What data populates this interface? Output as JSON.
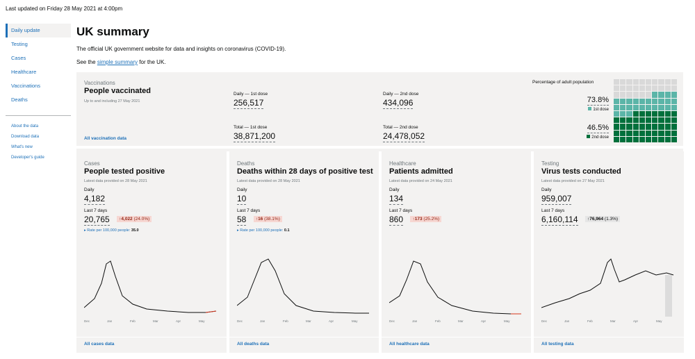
{
  "header": {
    "last_updated": "Last updated on Friday 28 May 2021 at 4:00pm"
  },
  "sidebar": {
    "items": [
      {
        "label": "Daily update",
        "active": true
      },
      {
        "label": "Testing"
      },
      {
        "label": "Cases"
      },
      {
        "label": "Healthcare"
      },
      {
        "label": "Vaccinations"
      },
      {
        "label": "Deaths"
      }
    ],
    "secondary": [
      {
        "label": "About the data"
      },
      {
        "label": "Download data"
      },
      {
        "label": "What's new"
      },
      {
        "label": "Developer's guide"
      }
    ]
  },
  "main": {
    "title": "UK summary",
    "lead": "The official UK government website for data and insights on coronavirus (COVID-19).",
    "see_prefix": "See the ",
    "see_link": "simple summary",
    "see_suffix": " for the UK."
  },
  "vaccinations": {
    "caption": "Vaccinations",
    "title": "People vaccinated",
    "sub": "Up to and including 27 May 2021",
    "daily_first_label": "Daily — 1st dose",
    "daily_first_value": "256,517",
    "daily_second_label": "Daily — 2nd dose",
    "daily_second_value": "434,096",
    "total_first_label": "Total — 1st dose",
    "total_first_value": "38,871,200",
    "total_second_label": "Total — 2nd dose",
    "total_second_value": "24,478,052",
    "pct_label": "Percentage of adult population",
    "first_pct": "73.8%",
    "first_legend": "1st dose",
    "second_pct": "46.5%",
    "second_legend": "2nd dose",
    "first_fraction": 0.738,
    "second_fraction": 0.465,
    "link": "All vaccination data",
    "colors": {
      "first": "#5bb5a8",
      "second": "#00703c",
      "empty": "#d9d9d9"
    }
  },
  "cards": [
    {
      "caption": "Cases",
      "title": "People tested positive",
      "sub": "Latest data provided on 28 May 2021",
      "daily_label": "Daily",
      "daily_value": "4,182",
      "week_label": "Last 7 days",
      "week_value": "20,765",
      "change": "4,022",
      "change_pct": "(24.0%)",
      "change_arrow": "↑",
      "change_style": "up",
      "rate_label": "Rate per 100,000 people:",
      "rate_value": "35.0",
      "link": "All cases data",
      "ticks": [
        "Dec",
        "Jan",
        "Feb",
        "Mar",
        "Apr",
        "May"
      ]
    },
    {
      "caption": "Deaths",
      "title": "Deaths within 28 days of positive test",
      "sub": "Latest data provided on 28 May 2021",
      "daily_label": "Daily",
      "daily_value": "10",
      "week_label": "Last 7 days",
      "week_value": "58",
      "change": "16",
      "change_pct": "(38.1%)",
      "change_arrow": "↑",
      "change_style": "up",
      "rate_label": "Rate per 100,000 people:",
      "rate_value": "0.1",
      "link": "All deaths data",
      "ticks": [
        "Dec",
        "Jan",
        "Feb",
        "Mar",
        "Apr",
        "May"
      ]
    },
    {
      "caption": "Healthcare",
      "title": "Patients admitted",
      "sub": "Latest data provided on 24 May 2021",
      "daily_label": "Daily",
      "daily_value": "134",
      "week_label": "Last 7 days",
      "week_value": "860",
      "change": "173",
      "change_pct": "(25.2%)",
      "change_arrow": "↑",
      "change_style": "up",
      "rate_label": "",
      "rate_value": "",
      "link": "All healthcare data",
      "ticks": [
        "Dec",
        "Jan",
        "Feb",
        "Mar",
        "Apr",
        "May"
      ]
    },
    {
      "caption": "Testing",
      "title": "Virus tests conducted",
      "sub": "Latest data provided on 27 May 2021",
      "daily_label": "Daily",
      "daily_value": "959,007",
      "week_label": "Last 7 days",
      "week_value": "6,160,114",
      "change": "76,964",
      "change_pct": "(1.3%)",
      "change_arrow": "↑",
      "change_style": "grey",
      "rate_label": "",
      "rate_value": "",
      "link": "All testing data",
      "ticks": [
        "Dec",
        "Jan",
        "Feb",
        "Mar",
        "Apr",
        "May"
      ]
    }
  ]
}
